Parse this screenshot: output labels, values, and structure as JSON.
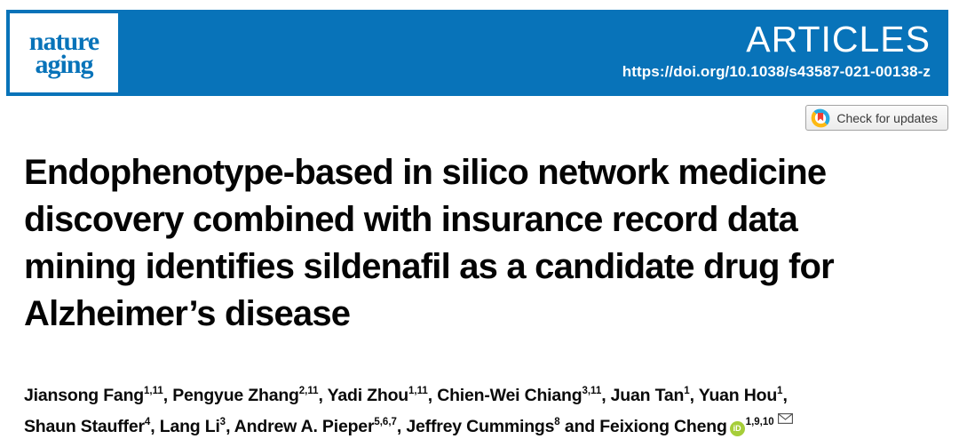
{
  "banner": {
    "journal_name_line1": "nature",
    "journal_name_line2": "aging",
    "article_type": "ARTICLES",
    "doi": "https://doi.org/10.1038/s43587-021-00138-z",
    "banner_color": "#0873B9"
  },
  "badge": {
    "label": "Check for updates",
    "crossmark_colors": {
      "blue": "#27AAE1",
      "yellow": "#FDB913",
      "red": "#EF3E33"
    }
  },
  "title": {
    "lines": [
      "Endophenotype-based in silico network medicine",
      "discovery combined with insurance record data",
      "mining identifies sildenafil as a candidate drug for",
      "Alzheimer’s disease"
    ]
  },
  "authors": {
    "lines": [
      [
        {
          "name": "Jiansong Fang",
          "sup": "1,11",
          "sep": ", "
        },
        {
          "name": "Pengyue Zhang",
          "sup": "2,11",
          "sep": ", "
        },
        {
          "name": "Yadi Zhou",
          "sup": "1,11",
          "sep": ", "
        },
        {
          "name": "Chien-Wei Chiang",
          "sup": "3,11",
          "sep": ", "
        },
        {
          "name": "Juan Tan",
          "sup": "1",
          "sep": ", "
        },
        {
          "name": "Yuan Hou",
          "sup": "1",
          "sep": ","
        }
      ],
      [
        {
          "name": "Shaun Stauffer",
          "sup": "4",
          "sep": ", "
        },
        {
          "name": "Lang Li",
          "sup": "3",
          "sep": ", "
        },
        {
          "name": "Andrew A. Pieper",
          "sup": "5,6,7",
          "sep": ", "
        },
        {
          "name": "Jeffrey Cummings",
          "sup": "8",
          "sep": " and "
        },
        {
          "name": "Feixiong Cheng",
          "orcid": true,
          "sup": "1,9,10",
          "email": true,
          "sep": ""
        }
      ]
    ],
    "orcid_label": "iD"
  }
}
